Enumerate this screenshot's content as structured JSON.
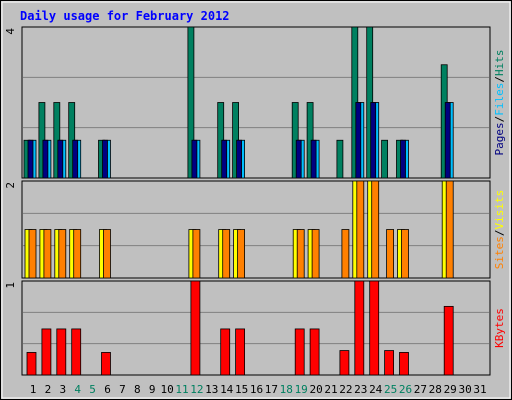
{
  "title": "Daily usage for February 2012",
  "legend_separator": "/",
  "chart_data": [
    {
      "type": "bar",
      "ylim": [
        0,
        4
      ],
      "yticks": [
        4
      ],
      "series": [
        {
          "name": "Hits",
          "color": "#008060",
          "values": [
            1,
            2,
            2,
            2,
            0,
            1,
            0,
            0,
            0,
            0,
            0,
            4,
            0,
            2,
            2,
            0,
            0,
            0,
            2,
            2,
            0,
            1,
            4,
            4,
            1,
            1,
            0,
            0,
            3,
            0,
            0
          ]
        },
        {
          "name": "Files",
          "color": "#00bfff",
          "values": [
            1,
            1,
            1,
            1,
            0,
            1,
            0,
            0,
            0,
            0,
            0,
            1,
            0,
            1,
            1,
            0,
            0,
            0,
            1,
            1,
            0,
            0,
            2,
            2,
            0,
            1,
            0,
            0,
            2,
            0,
            0
          ]
        },
        {
          "name": "Pages",
          "color": "#000080",
          "values": [
            1,
            1,
            1,
            1,
            0,
            1,
            0,
            0,
            0,
            0,
            0,
            1,
            0,
            1,
            1,
            0,
            0,
            0,
            1,
            1,
            0,
            0,
            2,
            2,
            0,
            1,
            0,
            0,
            2,
            0,
            0
          ]
        }
      ]
    },
    {
      "type": "bar",
      "ylim": [
        0,
        2
      ],
      "yticks": [
        2
      ],
      "series": [
        {
          "name": "Visits",
          "color": "#ffff00",
          "values": [
            1,
            1,
            1,
            1,
            0,
            1,
            0,
            0,
            0,
            0,
            0,
            1,
            0,
            1,
            1,
            0,
            0,
            0,
            1,
            1,
            0,
            0,
            2,
            2,
            0,
            1,
            0,
            0,
            2,
            0,
            0
          ]
        },
        {
          "name": "Sites",
          "color": "#ff8000",
          "values": [
            1,
            1,
            1,
            1,
            0,
            1,
            0,
            0,
            0,
            0,
            0,
            1,
            0,
            1,
            1,
            0,
            0,
            0,
            1,
            1,
            0,
            1,
            2,
            2,
            1,
            1,
            0,
            0,
            2,
            0,
            0
          ]
        }
      ]
    },
    {
      "type": "bar",
      "ylim": [
        0,
        1
      ],
      "yticks": [
        1
      ],
      "categories": [
        "1",
        "2",
        "3",
        "4",
        "5",
        "6",
        "7",
        "8",
        "9",
        "10",
        "11",
        "12",
        "13",
        "14",
        "15",
        "16",
        "17",
        "18",
        "19",
        "20",
        "21",
        "22",
        "23",
        "24",
        "25",
        "26",
        "27",
        "28",
        "29",
        "30",
        "31"
      ],
      "category_colors": [
        "#000000",
        "#000000",
        "#000000",
        "#008060",
        "#008060",
        "#000000",
        "#000000",
        "#000000",
        "#000000",
        "#000000",
        "#008060",
        "#008060",
        "#000000",
        "#000000",
        "#000000",
        "#000000",
        "#000000",
        "#008060",
        "#008060",
        "#000000",
        "#000000",
        "#000000",
        "#000000",
        "#000000",
        "#008060",
        "#008060",
        "#000000",
        "#000000",
        "#000000",
        "#000000",
        "#000000"
      ],
      "series": [
        {
          "name": "KBytes",
          "color": "#ff0000",
          "values": [
            0.24,
            0.49,
            0.49,
            0.49,
            0,
            0.24,
            0,
            0,
            0,
            0,
            0,
            1,
            0,
            0.49,
            0.49,
            0,
            0,
            0,
            0.49,
            0.49,
            0,
            0.26,
            1,
            1,
            0.26,
            0.24,
            0,
            0,
            0.73,
            0,
            0
          ]
        }
      ]
    }
  ]
}
